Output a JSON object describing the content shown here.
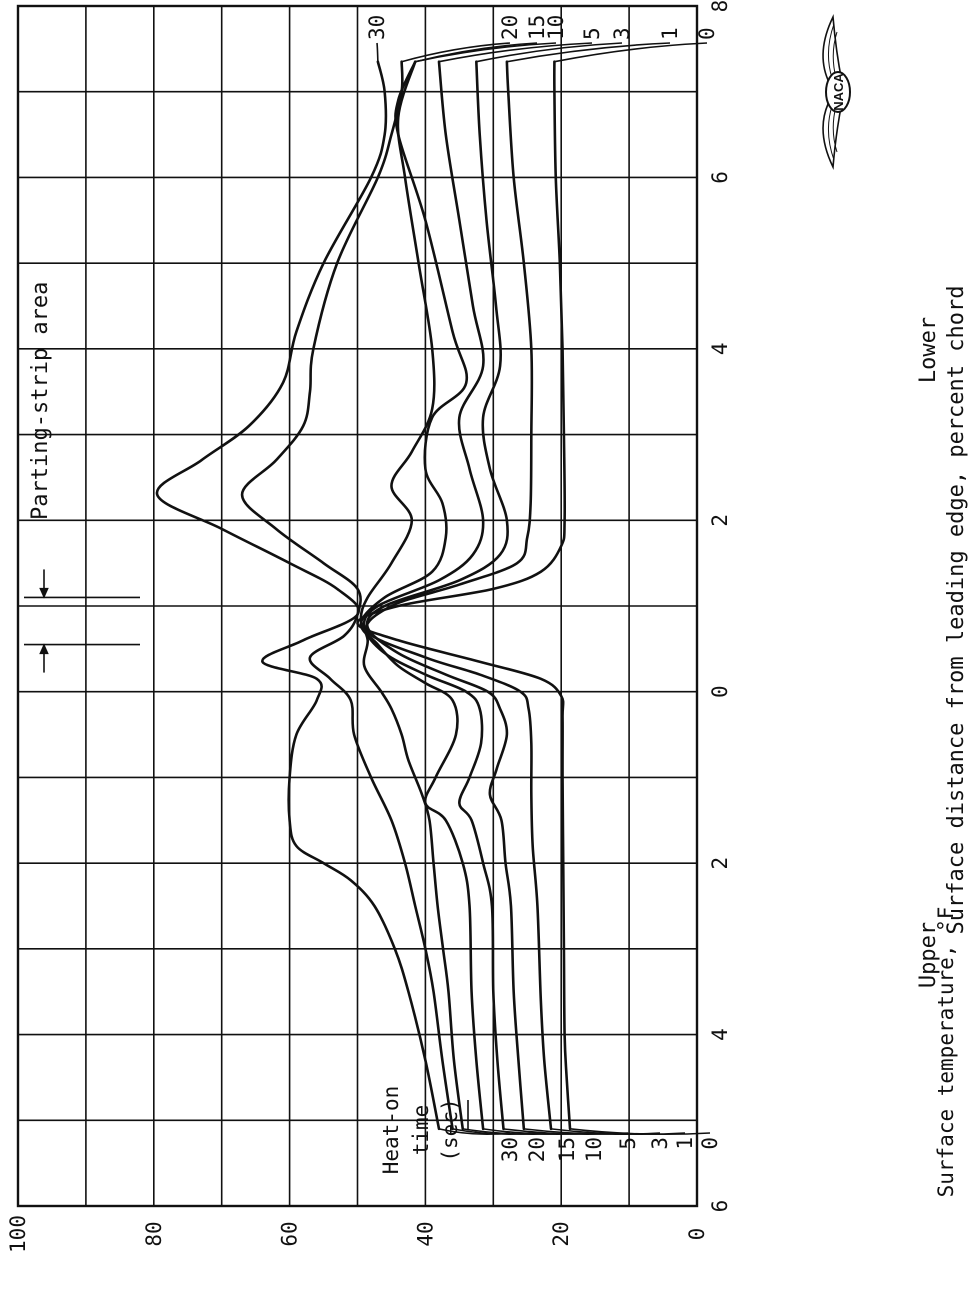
{
  "chart_data": {
    "type": "line",
    "ylabel": "Surface temperature, °F",
    "xlabel": "Surface distance from leading edge, percent chord",
    "x_side_labels": {
      "upper": "Upper",
      "lower": "Lower"
    },
    "x_ticks": [
      "6",
      "4",
      "2",
      "0",
      "2",
      "4",
      "6",
      "8"
    ],
    "xlim": [
      -6,
      8
    ],
    "y_ticks": [
      "0",
      "20",
      "40",
      "60",
      "80",
      "100"
    ],
    "ylim": [
      0,
      100
    ],
    "grid": true,
    "legend_title": "Heat-on time (sec)",
    "legend_title_lines": [
      "Heat-on",
      "time",
      "(sec)"
    ],
    "annotation": "Parting-strip area",
    "parting_strip": [
      0.55,
      1.1
    ],
    "logo": "NACA",
    "series": [
      {
        "name": "0",
        "points": [
          [
            -5.1,
            18.7
          ],
          [
            -4.5,
            19.2
          ],
          [
            -4.0,
            19.5
          ],
          [
            -3,
            19.6
          ],
          [
            -2,
            19.7
          ],
          [
            -1,
            19.8
          ],
          [
            -0.3,
            19.8
          ],
          [
            -0.05,
            20
          ],
          [
            0.15,
            23
          ],
          [
            0.35,
            32
          ],
          [
            0.6,
            44
          ],
          [
            0.8,
            50
          ],
          [
            1.0,
            44
          ],
          [
            1.2,
            30
          ],
          [
            1.4,
            23
          ],
          [
            1.7,
            20
          ],
          [
            2,
            19.5
          ],
          [
            3,
            19.6
          ],
          [
            4,
            19.8
          ],
          [
            5,
            20.2
          ],
          [
            6,
            20.8
          ],
          [
            7,
            21
          ],
          [
            7.35,
            21
          ]
        ]
      },
      {
        "name": "1",
        "points": [
          [
            -5.1,
            21.5
          ],
          [
            -4.3,
            22.5
          ],
          [
            -3.6,
            23
          ],
          [
            -2.5,
            23.5
          ],
          [
            -1.8,
            24.2
          ],
          [
            -1.2,
            24.4
          ],
          [
            -0.6,
            24.4
          ],
          [
            -0.2,
            24.8
          ],
          [
            0,
            26
          ],
          [
            0.2,
            32
          ],
          [
            0.4,
            40
          ],
          [
            0.7,
            48.5
          ],
          [
            1.0,
            45
          ],
          [
            1.25,
            35
          ],
          [
            1.5,
            26.5
          ],
          [
            1.8,
            25
          ],
          [
            2.2,
            24.5
          ],
          [
            3,
            24.4
          ],
          [
            4,
            24.4
          ],
          [
            5,
            25.5
          ],
          [
            6,
            27
          ],
          [
            7,
            27.8
          ],
          [
            7.35,
            28
          ]
        ]
      },
      {
        "name": "3",
        "points": [
          [
            -5.1,
            25.5
          ],
          [
            -4.3,
            26.3
          ],
          [
            -3.5,
            27
          ],
          [
            -2.5,
            27.4
          ],
          [
            -2,
            28.2
          ],
          [
            -1.5,
            28.8
          ],
          [
            -1.2,
            30.5
          ],
          [
            -0.9,
            29.5
          ],
          [
            -0.5,
            28
          ],
          [
            -0.2,
            29
          ],
          [
            0,
            30.8
          ],
          [
            0.2,
            37
          ],
          [
            0.45,
            44
          ],
          [
            0.75,
            48.5
          ],
          [
            1.0,
            46
          ],
          [
            1.3,
            35
          ],
          [
            1.6,
            29
          ],
          [
            2,
            28
          ],
          [
            2.6,
            30.5
          ],
          [
            3.2,
            31.5
          ],
          [
            3.8,
            29
          ],
          [
            4.5,
            29.6
          ],
          [
            5.5,
            31
          ],
          [
            6.5,
            32
          ],
          [
            7.35,
            32.5
          ]
        ]
      },
      {
        "name": "5",
        "points": [
          [
            -5.1,
            28.5
          ],
          [
            -4.3,
            29.4
          ],
          [
            -3.5,
            30
          ],
          [
            -2.5,
            30.2
          ],
          [
            -2,
            31.5
          ],
          [
            -1.5,
            33.2
          ],
          [
            -1.3,
            35
          ],
          [
            -1.0,
            33.5
          ],
          [
            -0.6,
            31.8
          ],
          [
            -0.2,
            32
          ],
          [
            0,
            34
          ],
          [
            0.2,
            40
          ],
          [
            0.45,
            46
          ],
          [
            0.75,
            49
          ],
          [
            1.0,
            47
          ],
          [
            1.3,
            38
          ],
          [
            1.6,
            33
          ],
          [
            2,
            31.5
          ],
          [
            2.6,
            33.5
          ],
          [
            3.2,
            35
          ],
          [
            3.8,
            31.5
          ],
          [
            4.5,
            33
          ],
          [
            5.5,
            35
          ],
          [
            6.5,
            37
          ],
          [
            7.35,
            38
          ]
        ]
      },
      {
        "name": "10",
        "points": [
          [
            -5.1,
            31.5
          ],
          [
            -4.3,
            32.5
          ],
          [
            -3.5,
            33.2
          ],
          [
            -2.5,
            33.5
          ],
          [
            -2,
            34.5
          ],
          [
            -1.5,
            37
          ],
          [
            -1.3,
            40
          ],
          [
            -1.0,
            38.5
          ],
          [
            -0.5,
            35.5
          ],
          [
            -0.1,
            36
          ],
          [
            0.1,
            40
          ],
          [
            0.3,
            44
          ],
          [
            0.55,
            47
          ],
          [
            0.8,
            49.5
          ],
          [
            1.1,
            46
          ],
          [
            1.4,
            39
          ],
          [
            1.8,
            37
          ],
          [
            2.2,
            37.5
          ],
          [
            2.6,
            40
          ],
          [
            3.2,
            39
          ],
          [
            3.6,
            34
          ],
          [
            4.2,
            36
          ],
          [
            5.5,
            40
          ],
          [
            6.5,
            44
          ],
          [
            6.9,
            44
          ],
          [
            7.35,
            41.5
          ]
        ]
      },
      {
        "name": "15",
        "points": [
          [
            -5.1,
            34.5
          ],
          [
            -4.3,
            35.8
          ],
          [
            -3.5,
            36.6
          ],
          [
            -3,
            37.4
          ],
          [
            -2.5,
            38.2
          ],
          [
            -2,
            38.8
          ],
          [
            -1.5,
            39.4
          ],
          [
            -1.2,
            40.5
          ],
          [
            -0.8,
            42.5
          ],
          [
            -0.5,
            43.5
          ],
          [
            -0.2,
            45
          ],
          [
            0,
            46.5
          ],
          [
            0.3,
            49
          ],
          [
            0.6,
            48.5
          ],
          [
            0.85,
            49.5
          ],
          [
            1.1,
            48.5
          ],
          [
            1.5,
            45
          ],
          [
            2,
            42
          ],
          [
            2.4,
            45
          ],
          [
            2.8,
            42
          ],
          [
            3.3,
            39
          ],
          [
            4,
            39
          ],
          [
            5,
            41
          ],
          [
            6,
            43
          ],
          [
            6.7,
            44
          ],
          [
            7.35,
            41.5
          ]
        ]
      },
      {
        "name": "20",
        "points": [
          [
            -5.1,
            36
          ],
          [
            -4.3,
            37.5
          ],
          [
            -3.5,
            38.8
          ],
          [
            -3,
            40
          ],
          [
            -2.5,
            41.5
          ],
          [
            -2,
            43
          ],
          [
            -1.5,
            45
          ],
          [
            -1.0,
            48
          ],
          [
            -0.5,
            50.5
          ],
          [
            -0.1,
            51
          ],
          [
            0.15,
            54
          ],
          [
            0.4,
            57
          ],
          [
            0.65,
            52
          ],
          [
            0.9,
            50
          ],
          [
            1.2,
            50
          ],
          [
            1.5,
            55
          ],
          [
            1.9,
            62
          ],
          [
            2.3,
            67
          ],
          [
            2.7,
            62
          ],
          [
            3.1,
            58
          ],
          [
            3.5,
            57
          ],
          [
            4,
            56.5
          ],
          [
            5,
            53
          ],
          [
            6,
            47
          ],
          [
            6.5,
            45
          ],
          [
            7.0,
            43.5
          ],
          [
            7.35,
            43.5
          ]
        ]
      },
      {
        "name": "30",
        "points": [
          [
            -5.1,
            38
          ],
          [
            -4.3,
            40
          ],
          [
            -3.5,
            42.5
          ],
          [
            -3,
            44.5
          ],
          [
            -2.5,
            47.5
          ],
          [
            -2.2,
            51
          ],
          [
            -2.0,
            55
          ],
          [
            -1.8,
            59
          ],
          [
            -1.5,
            60
          ],
          [
            -1.0,
            60
          ],
          [
            -0.5,
            59
          ],
          [
            -0.1,
            56
          ],
          [
            0.15,
            56
          ],
          [
            0.35,
            64
          ],
          [
            0.6,
            58
          ],
          [
            0.9,
            50
          ],
          [
            1.2,
            53
          ],
          [
            1.5,
            60
          ],
          [
            1.9,
            70
          ],
          [
            2.3,
            79.5
          ],
          [
            2.7,
            73
          ],
          [
            3.1,
            66
          ],
          [
            3.6,
            61
          ],
          [
            4.2,
            59
          ],
          [
            5,
            55
          ],
          [
            6,
            48
          ],
          [
            6.5,
            46
          ],
          [
            7.0,
            46
          ],
          [
            7.35,
            47
          ]
        ]
      }
    ],
    "series_label_positions": {
      "right_end": [
        "30",
        "20",
        "15",
        "10",
        "5",
        "3",
        "1",
        "0"
      ],
      "left_end": [
        "30",
        "20",
        "15",
        "10",
        "5",
        "3",
        "1",
        "0"
      ]
    }
  }
}
